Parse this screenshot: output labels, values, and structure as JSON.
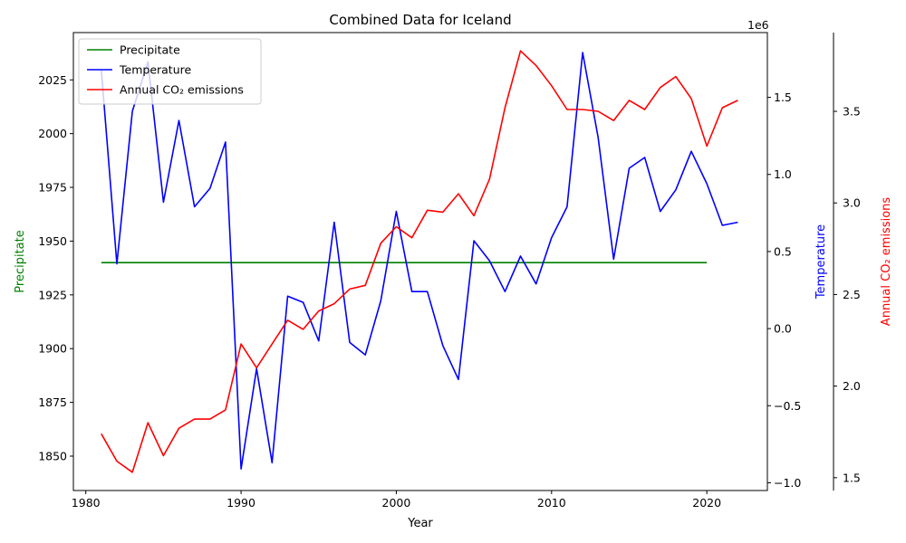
{
  "chart_data": {
    "type": "line",
    "title": "Combined Data for Iceland",
    "xlabel": "Year",
    "xlim": [
      1979.2,
      2023.9
    ],
    "x_ticks": [
      "1980",
      "1990",
      "2000",
      "2010",
      "2020"
    ],
    "axes": [
      {
        "id": "precip",
        "label": "Precipitate",
        "color": "#008000",
        "side": "left",
        "ylim": [
          1834,
          2047
        ],
        "ticks": [
          "1850",
          "1875",
          "1900",
          "1925",
          "1950",
          "1975",
          "2000",
          "2025"
        ]
      },
      {
        "id": "temp",
        "label": "Temperature",
        "color": "#0000ff",
        "side": "right",
        "offset_label": "1e6",
        "ylim": [
          -1.05,
          1.92
        ],
        "ticks": [
          "−1.0",
          "−0.5",
          "0.0",
          "0.5",
          "1.0",
          "1.5"
        ]
      },
      {
        "id": "co2",
        "label": "Annual CO₂ emissions",
        "color": "#ff0000",
        "side": "right-outer",
        "ylim": [
          1.43,
          3.93
        ],
        "ticks": [
          "1.5",
          "2.0",
          "2.5",
          "3.0",
          "3.5"
        ]
      }
    ],
    "legend_position": "top-left",
    "series": [
      {
        "name": "Precipitate",
        "axis": "precip",
        "color": "#008000",
        "x": [
          1981,
          2020
        ],
        "values": [
          1940,
          1940
        ]
      },
      {
        "name": "Temperature",
        "axis": "temp",
        "color": "#0000ff",
        "x": [
          1981,
          1982,
          1983,
          1984,
          1985,
          1986,
          1987,
          1988,
          1989,
          1990,
          1991,
          1992,
          1993,
          1994,
          1995,
          1996,
          1997,
          1998,
          1999,
          2000,
          2001,
          2002,
          2003,
          2004,
          2005,
          2006,
          2007,
          2008,
          2009,
          2010,
          2011,
          2012,
          2013,
          2014,
          2015,
          2016,
          2017,
          2018,
          2019,
          2020,
          2021,
          2022
        ],
        "values": [
          1.68,
          0.42,
          1.41,
          1.73,
          0.82,
          1.35,
          0.79,
          0.91,
          1.21,
          -0.91,
          -0.26,
          -0.87,
          0.21,
          0.17,
          -0.08,
          0.69,
          -0.09,
          -0.17,
          0.18,
          0.76,
          0.24,
          0.24,
          -0.11,
          -0.33,
          0.57,
          0.44,
          0.24,
          0.47,
          0.29,
          0.59,
          0.79,
          1.79,
          1.24,
          0.45,
          1.04,
          1.11,
          0.76,
          0.9,
          1.15,
          0.94,
          0.67,
          0.69
        ]
      },
      {
        "name": "Annual CO₂ emissions",
        "axis": "co2",
        "color": "#ff0000",
        "x": [
          1981,
          1982,
          1983,
          1984,
          1985,
          1986,
          1987,
          1988,
          1989,
          1990,
          1991,
          1992,
          1993,
          1994,
          1995,
          1996,
          1997,
          1998,
          1999,
          2000,
          2001,
          2002,
          2003,
          2004,
          2005,
          2006,
          2007,
          2008,
          2009,
          2010,
          2011,
          2012,
          2013,
          2014,
          2015,
          2016,
          2017,
          2018,
          2019,
          2020,
          2021,
          2022
        ],
        "values": [
          1.74,
          1.59,
          1.53,
          1.8,
          1.62,
          1.77,
          1.82,
          1.82,
          1.87,
          2.23,
          2.1,
          2.23,
          2.36,
          2.31,
          2.41,
          2.45,
          2.53,
          2.55,
          2.78,
          2.87,
          2.81,
          2.96,
          2.95,
          3.05,
          2.93,
          3.13,
          3.52,
          3.83,
          3.75,
          3.64,
          3.51,
          3.51,
          3.5,
          3.45,
          3.56,
          3.51,
          3.63,
          3.69,
          3.57,
          3.31,
          3.52,
          3.56
        ]
      }
    ]
  }
}
